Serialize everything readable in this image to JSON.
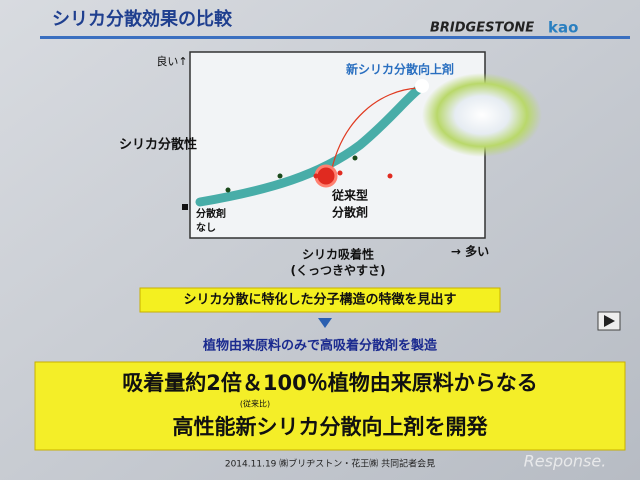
{
  "header": {
    "title": "シリカ分散効果の比較",
    "logos": [
      "BRIDGESTONE",
      "kao"
    ]
  },
  "diagram": {
    "y_axis": {
      "top": "良い↑",
      "label": "シリカ分散性"
    },
    "x_axis": {
      "label": "シリカ吸着性",
      "sublabel": "(くっつきやすさ)",
      "end": "→ 多い"
    },
    "points": [
      {
        "label_lines": [
          "分散剤",
          "なし"
        ]
      },
      {
        "label_lines": [
          "従来型",
          "分散剤"
        ]
      },
      {
        "label_lines": [
          "新シリカ分散向上剤"
        ]
      }
    ]
  },
  "finding": "シリカ分散に特化した分子構造の特徴を見出す",
  "method": "植物由来原料のみで高吸着分散剤を製造",
  "result": {
    "line1": "吸着量約2倍＆100％植物由来原料からなる",
    "note": "(従来比)",
    "line2": "高性能新シリカ分散向上剤を開発"
  },
  "footer": "2014.11.19 ㈱ブリヂストン・花王㈱ 共同記者会見",
  "watermark": "Response."
}
